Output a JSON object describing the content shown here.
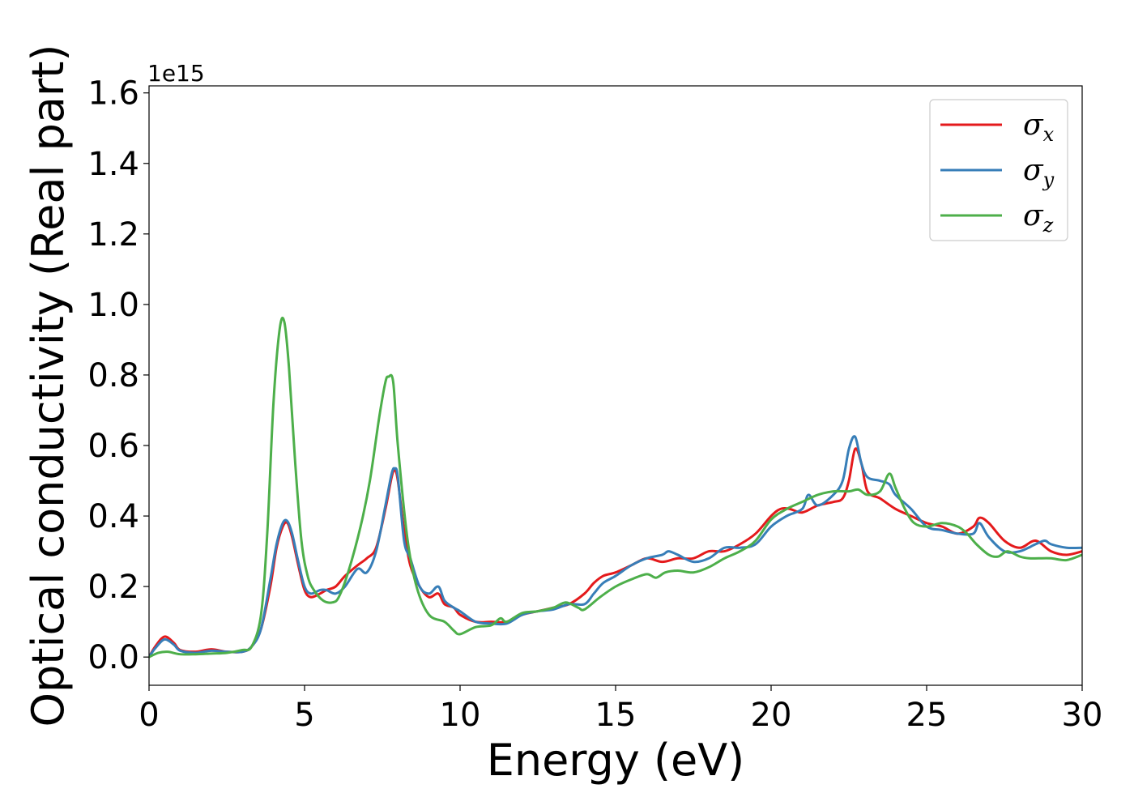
{
  "chart_data": {
    "type": "line",
    "xlabel": "Energy (eV)",
    "ylabel": "Optical conductivity (Real part)",
    "y_offset_label": "1e15",
    "xlim": [
      0,
      30
    ],
    "ylim": [
      -0.08,
      1.62
    ],
    "xticks": [
      0,
      5,
      10,
      15,
      20,
      25,
      30
    ],
    "xtick_labels": [
      "0",
      "5",
      "10",
      "15",
      "20",
      "25",
      "30"
    ],
    "yticks": [
      0.0,
      0.2,
      0.4,
      0.6,
      0.8,
      1.0,
      1.2,
      1.4,
      1.6
    ],
    "ytick_labels": [
      "0.0",
      "0.2",
      "0.4",
      "0.6",
      "0.8",
      "1.0",
      "1.2",
      "1.4",
      "1.6"
    ],
    "grid": false,
    "legend_position": "top-right",
    "series": [
      {
        "name": "σx",
        "legend_symbol": "σ",
        "legend_subscript": "x",
        "color": "#e41a1c",
        "x": [
          0,
          0.2,
          0.5,
          0.8,
          1.0,
          1.5,
          2.0,
          2.5,
          3.0,
          3.3,
          3.6,
          3.9,
          4.1,
          4.3,
          4.45,
          4.6,
          4.8,
          5.0,
          5.2,
          5.5,
          5.7,
          6.0,
          6.3,
          6.7,
          7.0,
          7.3,
          7.6,
          7.8,
          7.9,
          8.0,
          8.2,
          8.4,
          8.7,
          9.0,
          9.3,
          9.5,
          9.8,
          10.0,
          10.5,
          11.0,
          11.5,
          12.0,
          12.5,
          13.0,
          13.5,
          14.0,
          14.3,
          14.6,
          15.0,
          15.5,
          16.0,
          16.5,
          17.0,
          17.5,
          18.0,
          18.5,
          19.0,
          19.5,
          20.0,
          20.3,
          20.6,
          21.0,
          21.5,
          22.0,
          22.3,
          22.5,
          22.7,
          22.9,
          23.1,
          23.5,
          24.0,
          24.5,
          25.0,
          25.5,
          26.0,
          26.5,
          26.7,
          27.0,
          27.5,
          28.0,
          28.5,
          29.0,
          29.5,
          30.0
        ],
        "y": [
          0.0,
          0.03,
          0.058,
          0.04,
          0.02,
          0.015,
          0.022,
          0.015,
          0.015,
          0.03,
          0.08,
          0.2,
          0.31,
          0.37,
          0.38,
          0.34,
          0.26,
          0.19,
          0.17,
          0.18,
          0.19,
          0.2,
          0.23,
          0.26,
          0.28,
          0.31,
          0.42,
          0.51,
          0.53,
          0.5,
          0.36,
          0.26,
          0.2,
          0.17,
          0.18,
          0.15,
          0.14,
          0.12,
          0.1,
          0.1,
          0.1,
          0.12,
          0.13,
          0.14,
          0.15,
          0.18,
          0.21,
          0.23,
          0.24,
          0.26,
          0.28,
          0.27,
          0.28,
          0.28,
          0.3,
          0.3,
          0.32,
          0.35,
          0.4,
          0.42,
          0.42,
          0.41,
          0.43,
          0.44,
          0.45,
          0.5,
          0.59,
          0.55,
          0.47,
          0.45,
          0.42,
          0.4,
          0.38,
          0.37,
          0.35,
          0.37,
          0.395,
          0.38,
          0.33,
          0.31,
          0.33,
          0.3,
          0.29,
          0.3
        ]
      },
      {
        "name": "σy",
        "legend_symbol": "σ",
        "legend_subscript": "y",
        "color": "#377eb8",
        "x": [
          0,
          0.2,
          0.5,
          0.8,
          1.0,
          1.5,
          2.0,
          2.5,
          3.0,
          3.3,
          3.6,
          3.9,
          4.1,
          4.3,
          4.45,
          4.6,
          4.8,
          5.0,
          5.2,
          5.5,
          5.7,
          6.0,
          6.3,
          6.7,
          7.0,
          7.3,
          7.6,
          7.8,
          7.9,
          8.0,
          8.2,
          8.4,
          8.7,
          9.0,
          9.3,
          9.5,
          9.8,
          10.0,
          10.5,
          11.0,
          11.5,
          12.0,
          12.5,
          13.0,
          13.5,
          14.0,
          14.3,
          14.6,
          15.0,
          15.5,
          16.0,
          16.5,
          16.7,
          17.0,
          17.5,
          18.0,
          18.5,
          19.0,
          19.5,
          20.0,
          20.5,
          21.0,
          21.2,
          21.5,
          22.0,
          22.3,
          22.5,
          22.7,
          22.9,
          23.1,
          23.5,
          23.8,
          24.0,
          24.5,
          25.0,
          25.5,
          26.0,
          26.5,
          26.7,
          27.0,
          27.5,
          28.0,
          28.5,
          28.8,
          29.0,
          29.5,
          30.0
        ],
        "y": [
          0.0,
          0.025,
          0.05,
          0.035,
          0.018,
          0.012,
          0.018,
          0.015,
          0.015,
          0.03,
          0.08,
          0.22,
          0.32,
          0.38,
          0.385,
          0.35,
          0.27,
          0.2,
          0.18,
          0.19,
          0.19,
          0.18,
          0.2,
          0.25,
          0.24,
          0.3,
          0.43,
          0.52,
          0.535,
          0.51,
          0.33,
          0.28,
          0.2,
          0.18,
          0.2,
          0.16,
          0.14,
          0.13,
          0.1,
          0.095,
          0.095,
          0.12,
          0.13,
          0.135,
          0.15,
          0.15,
          0.18,
          0.21,
          0.23,
          0.26,
          0.28,
          0.29,
          0.3,
          0.29,
          0.27,
          0.28,
          0.31,
          0.31,
          0.32,
          0.37,
          0.4,
          0.42,
          0.46,
          0.43,
          0.46,
          0.5,
          0.59,
          0.625,
          0.55,
          0.51,
          0.5,
          0.49,
          0.46,
          0.42,
          0.37,
          0.36,
          0.35,
          0.35,
          0.38,
          0.34,
          0.3,
          0.3,
          0.32,
          0.33,
          0.32,
          0.31,
          0.31
        ]
      },
      {
        "name": "σz",
        "legend_symbol": "σ",
        "legend_subscript": "z",
        "color": "#4daf4a",
        "x": [
          0,
          0.3,
          0.6,
          1.0,
          1.5,
          2.0,
          2.5,
          3.0,
          3.3,
          3.6,
          3.8,
          4.0,
          4.2,
          4.35,
          4.5,
          4.7,
          4.9,
          5.1,
          5.3,
          5.6,
          5.9,
          6.1,
          6.4,
          6.8,
          7.1,
          7.4,
          7.6,
          7.7,
          7.85,
          8.0,
          8.3,
          8.6,
          9.0,
          9.5,
          9.8,
          10.0,
          10.5,
          11.0,
          11.3,
          11.5,
          12.0,
          12.5,
          13.0,
          13.4,
          13.8,
          14.0,
          14.5,
          15.0,
          15.5,
          16.0,
          16.3,
          16.6,
          17.0,
          17.5,
          18.0,
          18.5,
          19.0,
          19.5,
          20.0,
          20.5,
          21.0,
          21.5,
          22.0,
          22.5,
          22.8,
          23.1,
          23.5,
          23.8,
          24.0,
          24.3,
          24.6,
          25.0,
          25.5,
          26.0,
          26.3,
          26.6,
          27.0,
          27.3,
          27.6,
          28.0,
          28.3,
          28.6,
          29.0,
          29.5,
          30.0
        ],
        "y": [
          0.0,
          0.012,
          0.015,
          0.008,
          0.008,
          0.01,
          0.012,
          0.02,
          0.03,
          0.12,
          0.35,
          0.72,
          0.93,
          0.95,
          0.82,
          0.55,
          0.33,
          0.23,
          0.19,
          0.16,
          0.155,
          0.17,
          0.24,
          0.37,
          0.5,
          0.68,
          0.78,
          0.795,
          0.78,
          0.6,
          0.34,
          0.2,
          0.12,
          0.1,
          0.075,
          0.065,
          0.085,
          0.09,
          0.11,
          0.1,
          0.125,
          0.13,
          0.14,
          0.155,
          0.14,
          0.135,
          0.17,
          0.2,
          0.22,
          0.235,
          0.225,
          0.24,
          0.245,
          0.24,
          0.255,
          0.28,
          0.3,
          0.33,
          0.39,
          0.42,
          0.44,
          0.46,
          0.47,
          0.47,
          0.475,
          0.46,
          0.47,
          0.52,
          0.48,
          0.42,
          0.38,
          0.37,
          0.38,
          0.37,
          0.35,
          0.32,
          0.29,
          0.285,
          0.3,
          0.285,
          0.28,
          0.28,
          0.28,
          0.275,
          0.29
        ]
      }
    ]
  }
}
